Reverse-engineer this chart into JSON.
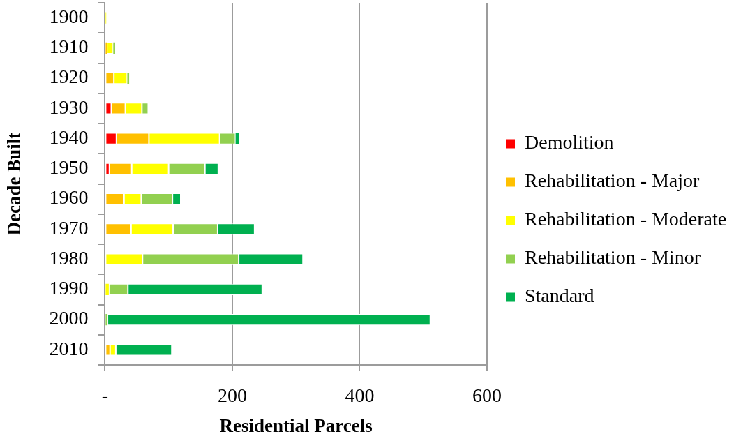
{
  "chart_data": {
    "type": "bar",
    "orientation": "horizontal",
    "stacked": true,
    "categories": [
      "1900",
      "1910",
      "1920",
      "1930",
      "1940",
      "1950",
      "1960",
      "1970",
      "1980",
      "1990",
      "2000",
      "2010"
    ],
    "series": [
      {
        "name": "Demolition",
        "color": "#ff0000",
        "values": [
          0,
          0,
          0,
          10,
          18,
          7,
          0,
          0,
          0,
          0,
          0,
          0
        ]
      },
      {
        "name": "Rehabilitation - Major",
        "color": "#ffc000",
        "values": [
          0,
          3,
          14,
          22,
          51,
          35,
          30,
          41,
          0,
          0,
          0,
          8
        ]
      },
      {
        "name": "Rehabilitation - Moderate",
        "color": "#ffff00",
        "values": [
          2,
          10,
          21,
          26,
          111,
          58,
          27,
          66,
          59,
          6,
          0,
          9
        ]
      },
      {
        "name": "Rehabilitation - Minor",
        "color": "#92d050",
        "values": [
          0,
          3,
          3,
          10,
          25,
          57,
          49,
          70,
          151,
          30,
          4,
          0
        ]
      },
      {
        "name": "Standard",
        "color": "#00b050",
        "values": [
          0,
          0,
          0,
          0,
          5,
          21,
          13,
          58,
          101,
          211,
          507,
          88
        ]
      }
    ],
    "xlabel": "Residential Parcels",
    "ylabel": "Decade Built",
    "xlim": [
      0,
      600
    ],
    "xticks": [
      {
        "value": 0,
        "label": "-"
      },
      200,
      400,
      600
    ],
    "grid": "x",
    "legend": "right"
  }
}
